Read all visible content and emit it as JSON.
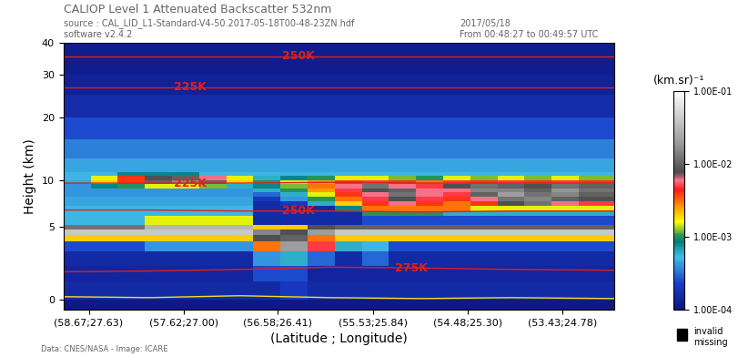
{
  "chart_data": {
    "type": "heatmap",
    "title": "CALIOP Level 1 Attenuated Backscatter 532nm",
    "header": {
      "source": "source : CAL_LID_L1-Standard-V4-50.2017-05-18T00-48-23ZN.hdf",
      "software": "software v2.4.2",
      "date": "2017/05/18",
      "time": "From 00:48:27 to 00:49:57 UTC"
    },
    "footer": "Data: CNES/NASA - Image: ICARE",
    "x_label": "(Latitude ; Longitude)",
    "y_label": "Height (km)",
    "xlim": [
      58.95,
      52.86
    ],
    "xticks": [
      {
        "value": 58.67,
        "label": "(58.67;27.63)"
      },
      {
        "value": 57.62,
        "label": "(57.62;27.00)"
      },
      {
        "value": 56.58,
        "label": "(56.58;26.41)"
      },
      {
        "value": 55.53,
        "label": "(55.53;25.84)"
      },
      {
        "value": 54.48,
        "label": "(54.48;25.30)"
      },
      {
        "value": 53.43,
        "label": "(53.43;24.78)"
      }
    ],
    "ylim": [
      -0.5,
      40
    ],
    "yticks": [
      0,
      5,
      10,
      20,
      30,
      40
    ],
    "x_edges": [
      58.95,
      58.65,
      58.35,
      58.05,
      57.75,
      57.45,
      57.15,
      56.85,
      56.55,
      56.25,
      55.95,
      55.65,
      55.35,
      55.05,
      54.75,
      54.45,
      54.15,
      53.85,
      53.55,
      53.25,
      52.86
    ],
    "y_edges": [
      -0.5,
      0,
      1,
      2,
      3,
      3.8,
      4.3,
      4.8,
      5.2,
      6,
      6.5,
      7,
      7.5,
      8,
      8.5,
      9,
      9.5,
      10,
      10.5,
      11,
      13,
      16,
      20,
      25,
      30,
      40
    ],
    "cells": [
      [
        0.00011,
        0.00011,
        0.00011,
        0.00011,
        0.00011,
        0.00011,
        0.00011,
        0.00011,
        0.00011,
        0.00011,
        0.00011,
        0.00011,
        0.00011,
        0.00011,
        0.00011,
        0.00011,
        0.00011,
        0.00011,
        0.00011,
        0.00011
      ],
      [
        0.00015,
        0.00015,
        0.00015,
        0.00015,
        0.00015,
        0.00015,
        0.00015,
        0.00015,
        0.0002,
        0.00015,
        0.00015,
        0.00015,
        0.00015,
        0.00015,
        0.00015,
        0.00015,
        0.00015,
        0.00015,
        0.00015,
        0.00015
      ],
      [
        0.00014,
        0.00014,
        0.00014,
        0.00014,
        0.00014,
        0.00014,
        0.00014,
        0.00025,
        0.00025,
        0.00014,
        0.00014,
        0.00014,
        0.00014,
        0.00014,
        0.00014,
        0.00014,
        0.00014,
        0.00014,
        0.00014,
        0.00014
      ],
      [
        0.00015,
        0.00015,
        0.00015,
        0.00015,
        0.00015,
        0.00015,
        0.00015,
        0.0004,
        0.0006,
        0.0003,
        0.00015,
        0.0003,
        0.00015,
        0.00015,
        0.00015,
        0.00015,
        0.00015,
        0.00015,
        0.00015,
        0.00015
      ],
      [
        0.00025,
        0.00025,
        0.00025,
        0.0004,
        0.0004,
        0.0004,
        0.0004,
        0.003,
        0.02,
        0.005,
        0.0006,
        0.0005,
        0.00025,
        0.00025,
        0.00025,
        0.00025,
        0.00025,
        0.00025,
        0.00025,
        0.00025
      ],
      [
        0.002,
        0.002,
        0.002,
        0.002,
        0.002,
        0.002,
        0.002,
        0.008,
        0.01,
        0.003,
        0.002,
        0.002,
        0.002,
        0.002,
        0.002,
        0.002,
        0.002,
        0.002,
        0.002,
        0.002
      ],
      [
        0.04,
        0.04,
        0.04,
        0.04,
        0.04,
        0.04,
        0.04,
        0.015,
        0.008,
        0.02,
        0.04,
        0.04,
        0.04,
        0.04,
        0.04,
        0.04,
        0.04,
        0.04,
        0.04,
        0.04
      ],
      [
        0.012,
        0.012,
        0.012,
        0.03,
        0.03,
        0.03,
        0.03,
        0.002,
        0.002,
        0.008,
        0.01,
        0.01,
        0.01,
        0.01,
        0.01,
        0.01,
        0.01,
        0.01,
        0.01,
        0.01
      ],
      [
        0.0005,
        0.0005,
        0.0005,
        0.0015,
        0.0015,
        0.0015,
        0.0015,
        0.00015,
        0.00015,
        0.00015,
        0.00015,
        0.00025,
        0.00025,
        0.00025,
        0.00025,
        0.00025,
        0.00025,
        0.00025,
        0.00025,
        0.00025
      ],
      [
        0.0005,
        0.0005,
        0.0005,
        0.0005,
        0.0005,
        0.0005,
        0.0005,
        0.00015,
        0.00015,
        0.00015,
        0.00015,
        0.001,
        0.001,
        0.001,
        0.0006,
        0.0006,
        0.0006,
        0.0006,
        0.0006,
        0.0006
      ],
      [
        0.0005,
        0.0005,
        0.0005,
        0.0005,
        0.0005,
        0.0005,
        0.0005,
        0.00015,
        0.00015,
        0.00015,
        0.0008,
        0.003,
        0.003,
        0.003,
        0.003,
        0.0015,
        0.0015,
        0.0015,
        0.0015,
        0.0015
      ],
      [
        0.00045,
        0.00045,
        0.00045,
        0.00045,
        0.00045,
        0.00045,
        0.00045,
        0.00015,
        0.0002,
        0.0006,
        0.002,
        0.004,
        0.006,
        0.004,
        0.003,
        0.004,
        0.008,
        0.012,
        0.006,
        0.005
      ],
      [
        0.00045,
        0.00045,
        0.00045,
        0.00045,
        0.00045,
        0.00045,
        0.00045,
        0.0002,
        0.0004,
        0.001,
        0.003,
        0.005,
        0.008,
        0.005,
        0.004,
        0.006,
        0.012,
        0.015,
        0.01,
        0.008
      ],
      [
        0.0004,
        0.0004,
        0.0004,
        0.0004,
        0.0004,
        0.0004,
        0.0004,
        0.0003,
        0.0006,
        0.0015,
        0.004,
        0.006,
        0.012,
        0.006,
        0.005,
        0.01,
        0.02,
        0.012,
        0.015,
        0.01
      ],
      [
        0.0004,
        0.0004,
        0.0004,
        0.0004,
        0.0004,
        0.0004,
        0.0004,
        0.0006,
        0.001,
        0.0025,
        0.005,
        0.008,
        0.01,
        0.006,
        0.006,
        0.015,
        0.015,
        0.01,
        0.018,
        0.012
      ],
      [
        0.0004,
        0.0008,
        0.001,
        0.0015,
        0.0015,
        0.0012,
        0.0006,
        0.0008,
        0.0012,
        0.003,
        0.006,
        0.012,
        0.006,
        0.005,
        0.008,
        0.012,
        0.01,
        0.008,
        0.012,
        0.01
      ],
      [
        0.0006,
        0.002,
        0.004,
        0.01,
        0.015,
        0.01,
        0.002,
        0.001,
        0.0015,
        0.0025,
        0.004,
        0.005,
        0.004,
        0.003,
        0.005,
        0.004,
        0.005,
        0.004,
        0.005,
        0.004
      ],
      [
        0.0005,
        0.0015,
        0.004,
        0.008,
        0.01,
        0.006,
        0.0015,
        0.0006,
        0.0008,
        0.001,
        0.0015,
        0.0015,
        0.0012,
        0.001,
        0.0015,
        0.0012,
        0.0015,
        0.0012,
        0.0015,
        0.0012
      ],
      [
        0.0005,
        0.0005,
        0.0008,
        0.0008,
        0.0008,
        0.0005,
        0.0005,
        0.0005,
        0.0005,
        0.0005,
        0.0005,
        0.0005,
        0.0005,
        0.0005,
        0.0005,
        0.0005,
        0.0005,
        0.0005,
        0.0005,
        0.0005
      ],
      [
        0.00045,
        0.00045,
        0.00045,
        0.00045,
        0.00045,
        0.00045,
        0.00045,
        0.00045,
        0.00045,
        0.00045,
        0.00045,
        0.00045,
        0.00045,
        0.00045,
        0.00045,
        0.00045,
        0.00045,
        0.00045,
        0.00045,
        0.00045
      ],
      [
        0.00035,
        0.00035,
        0.00035,
        0.00035,
        0.00035,
        0.00035,
        0.00035,
        0.00035,
        0.00035,
        0.00035,
        0.00035,
        0.00035,
        0.00035,
        0.00035,
        0.00035,
        0.00035,
        0.00035,
        0.00035,
        0.00035,
        0.00035
      ],
      [
        0.00025,
        0.00025,
        0.00025,
        0.00025,
        0.00025,
        0.00025,
        0.00025,
        0.00025,
        0.00025,
        0.00025,
        0.00025,
        0.00025,
        0.00025,
        0.00025,
        0.00025,
        0.00025,
        0.00025,
        0.00025,
        0.00025,
        0.00025
      ],
      [
        0.00016,
        0.00016,
        0.00016,
        0.00016,
        0.00016,
        0.00016,
        0.00016,
        0.00016,
        0.00016,
        0.00016,
        0.00016,
        0.00016,
        0.00016,
        0.00016,
        0.00016,
        0.00016,
        0.00016,
        0.00016,
        0.00016,
        0.00016
      ],
      [
        0.00013,
        0.00013,
        0.00013,
        0.00013,
        0.00013,
        0.00013,
        0.00013,
        0.00013,
        0.00013,
        0.00013,
        0.00013,
        0.00013,
        0.00013,
        0.00013,
        0.00013,
        0.00013,
        0.00013,
        0.00013,
        0.00013,
        0.00013
      ],
      [
        0.00012,
        0.00012,
        0.00012,
        0.00012,
        0.00012,
        0.00012,
        0.00012,
        0.00012,
        0.00012,
        0.00012,
        0.00012,
        0.00012,
        0.00012,
        0.00012,
        0.00012,
        0.00012,
        0.00012,
        0.00012,
        0.00012,
        0.00012
      ]
    ],
    "colorbar": {
      "label": "(km.sr)⁻¹",
      "range": [
        0.0001,
        0.1
      ],
      "ticks": [
        {
          "value": 0.0001,
          "label": "1.00E-04"
        },
        {
          "value": 0.001,
          "label": "1.00E-03"
        },
        {
          "value": 0.01,
          "label": "1.00E-02"
        },
        {
          "value": 0.1,
          "label": "1.00E-01"
        }
      ]
    },
    "missing_legend": [
      "invalid",
      "missing"
    ],
    "lines": [
      {
        "label": "275K",
        "label_x": 55.1,
        "color": "#e0201b",
        "x": [
          58.95,
          58.0,
          57.0,
          56.0,
          55.0,
          54.0,
          52.86
        ],
        "y": [
          1.6,
          1.65,
          1.75,
          1.9,
          1.85,
          1.75,
          1.7
        ]
      },
      {
        "label": "250K",
        "label_x": 56.35,
        "color": "#e0201b",
        "x": [
          58.95,
          58.0,
          57.0,
          56.0,
          55.0,
          54.0,
          52.86
        ],
        "y": [
          6.6,
          6.6,
          6.5,
          6.5,
          6.4,
          6.5,
          6.5
        ]
      },
      {
        "label": "225K",
        "label_x": 57.55,
        "color": "#e0201b",
        "x": [
          58.95,
          58.0,
          57.0,
          56.0,
          55.0,
          54.0,
          52.86
        ],
        "y": [
          9.6,
          9.6,
          9.6,
          9.7,
          9.6,
          9.6,
          9.6
        ]
      },
      {
        "label": "225K",
        "label_x": 57.55,
        "color": "#e0201b",
        "x": [
          58.95,
          58.0,
          57.0,
          56.0,
          55.0,
          54.0,
          52.86
        ],
        "y": [
          26.8,
          26.8,
          26.8,
          26.8,
          26.8,
          26.8,
          26.8
        ]
      },
      {
        "label": "250K",
        "label_x": 56.35,
        "color": "#e0201b",
        "x": [
          58.95,
          58.0,
          57.0,
          56.0,
          55.0,
          54.0,
          52.86
        ],
        "y": [
          35.5,
          35.5,
          35.5,
          35.5,
          35.5,
          35.5,
          35.5
        ]
      },
      {
        "color": "#f0e020",
        "x": [
          58.95,
          58.0,
          57.0,
          56.0,
          55.0,
          54.0,
          52.86
        ],
        "y": [
          0.15,
          0.1,
          0.2,
          0.1,
          0.05,
          0.1,
          0.05
        ]
      }
    ]
  }
}
